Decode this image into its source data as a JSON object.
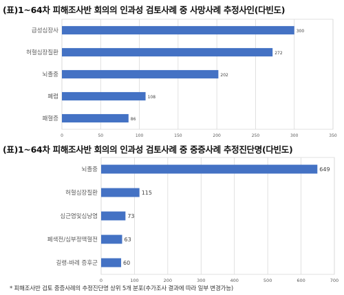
{
  "chart_data": [
    {
      "type": "bar",
      "orientation": "horizontal",
      "title": "(표)1~64차 피해조사반 회의의 인과성 검토사례 중 사망사례 추정사인(다빈도)",
      "categories": [
        "급성심장사",
        "허혈심장질환",
        "뇌졸중",
        "폐렴",
        "패혈증"
      ],
      "values": [
        300,
        272,
        202,
        108,
        86
      ],
      "xlim": [
        0,
        350
      ],
      "xticks": [
        0,
        50,
        100,
        150,
        200,
        250,
        300,
        350
      ],
      "grid": true,
      "bar_color": "#4472C4"
    },
    {
      "type": "bar",
      "orientation": "horizontal",
      "title": "(표)1~64차 피해조사반 회의의 인과성 검토사례 중 중증사례 추정진단명(다빈도)",
      "categories": [
        "뇌졸중",
        "허혈심장질환",
        "심근염및심낭염",
        "폐색전/심부정맥혈전",
        "길랭-바레 증후군"
      ],
      "values": [
        649,
        115,
        73,
        63,
        60
      ],
      "xlim": [
        0,
        700
      ],
      "xticks": [
        0,
        100,
        200,
        300,
        400,
        500,
        600,
        700
      ],
      "grid": true,
      "bar_color": "#4472C4"
    }
  ],
  "footnote": "* 피해조사반 검토 중증사례의 추정진단명 상위 5개 분포(추가조사 결과에 따라 일부 변경가능)"
}
